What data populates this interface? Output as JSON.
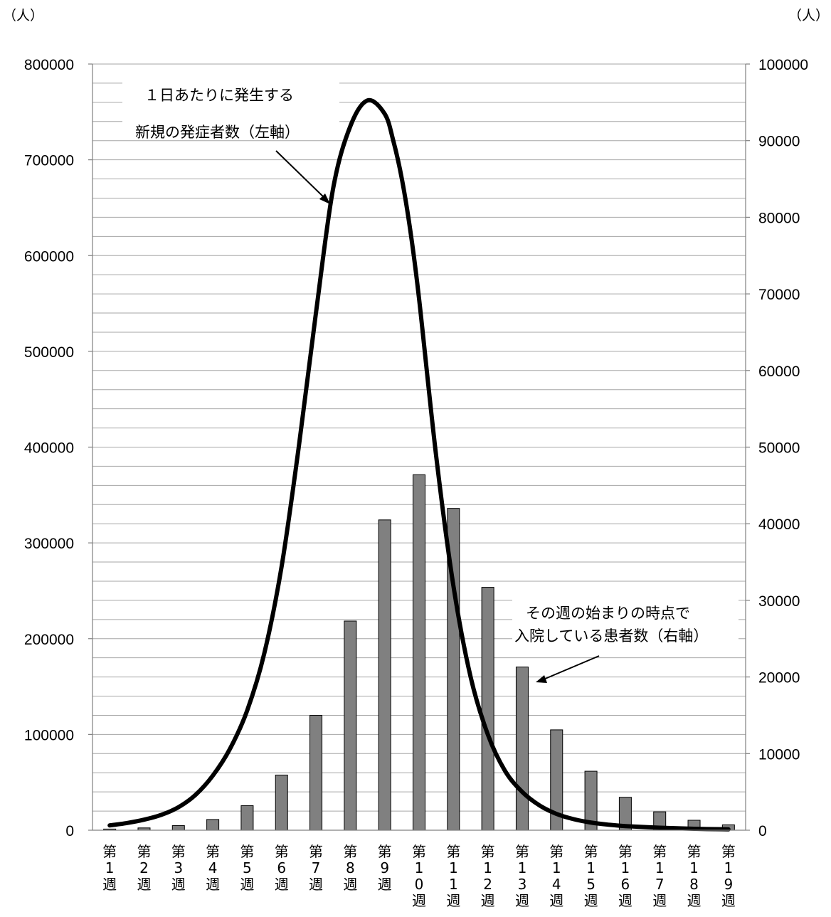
{
  "left_unit": "（人）",
  "right_unit": "（人）",
  "chart_data": {
    "type": "bar+line",
    "categories": [
      "第1週",
      "第2週",
      "第3週",
      "第4週",
      "第5週",
      "第6週",
      "第7週",
      "第8週",
      "第9週",
      "第10週",
      "第11週",
      "第12週",
      "第13週",
      "第14週",
      "第15週",
      "第16週",
      "第17週",
      "第18週",
      "第19週"
    ],
    "category_glyphs": [
      [
        "第",
        "1",
        "週"
      ],
      [
        "第",
        "2",
        "週"
      ],
      [
        "第",
        "3",
        "週"
      ],
      [
        "第",
        "4",
        "週"
      ],
      [
        "第",
        "5",
        "週"
      ],
      [
        "第",
        "6",
        "週"
      ],
      [
        "第",
        "7",
        "週"
      ],
      [
        "第",
        "8",
        "週"
      ],
      [
        "第",
        "9",
        "週"
      ],
      [
        "第",
        "1",
        "0",
        "週"
      ],
      [
        "第",
        "1",
        "1",
        "週"
      ],
      [
        "第",
        "1",
        "2",
        "週"
      ],
      [
        "第",
        "1",
        "3",
        "週"
      ],
      [
        "第",
        "1",
        "4",
        "週"
      ],
      [
        "第",
        "1",
        "5",
        "週"
      ],
      [
        "第",
        "1",
        "6",
        "週"
      ],
      [
        "第",
        "1",
        "7",
        "週"
      ],
      [
        "第",
        "1",
        "8",
        "週"
      ],
      [
        "第",
        "1",
        "9",
        "週"
      ]
    ],
    "y_left": {
      "min": 0,
      "max": 800000,
      "ticks": [
        "0",
        "100000",
        "200000",
        "300000",
        "400000",
        "500000",
        "600000",
        "700000",
        "800000"
      ]
    },
    "y_right": {
      "min": 0,
      "max": 100000,
      "ticks": [
        "0",
        "10000",
        "20000",
        "30000",
        "40000",
        "50000",
        "60000",
        "70000",
        "80000",
        "90000",
        "100000"
      ]
    },
    "gridlines_left_step": 20000,
    "series": [
      {
        "name": "その週の始まりの時点で入院している患者数（右軸）",
        "type": "bar",
        "axis": "right",
        "color": "#808080",
        "values": [
          150,
          300,
          600,
          1400,
          3200,
          7200,
          15000,
          27300,
          40500,
          46400,
          42000,
          31700,
          21300,
          13100,
          7700,
          4300,
          2400,
          1300,
          700
        ]
      },
      {
        "name": "1日あたりに発生する新規の発症者数（左軸）",
        "type": "line",
        "axis": "left",
        "color": "#000000",
        "x": [
          0,
          0.5,
          1,
          1.5,
          2,
          2.5,
          3,
          3.5,
          4,
          4.5,
          5,
          5.5,
          6,
          6.5,
          7,
          7.5,
          8,
          8.25,
          8.5,
          8.75,
          9,
          9.5,
          10,
          10.5,
          11,
          11.5,
          12,
          12.5,
          13,
          13.5,
          14,
          14.5,
          15,
          16,
          17,
          18
        ],
        "values": [
          5000,
          7500,
          11000,
          16000,
          24000,
          37000,
          57000,
          85000,
          125000,
          185000,
          275000,
          400000,
          540000,
          670000,
          735000,
          762000,
          748000,
          720000,
          680000,
          625000,
          555000,
          390000,
          255000,
          160000,
          100000,
          62000,
          40000,
          26000,
          17000,
          11500,
          8000,
          5800,
          4300,
          2600,
          1500,
          900
        ]
      }
    ],
    "annotations": [
      {
        "lines": [
          "１日あたりに発生する",
          "新規の発症者数（左軸）"
        ]
      },
      {
        "lines": [
          "その週の始まりの時点で",
          "入院している患者数（右軸）"
        ]
      }
    ]
  }
}
